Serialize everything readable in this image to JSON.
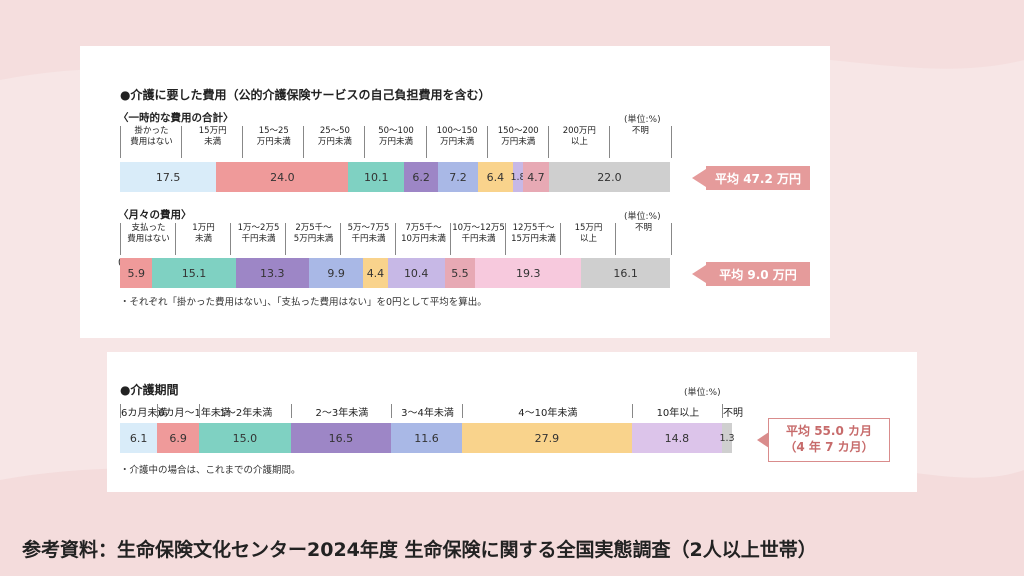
{
  "source": "参考資料：生命保険文化センター2024年度 生命保険に関する全国実態調査（2人以上世帯）",
  "panel1": {
    "title": "●介護に要した費用（公的介護保険サービスの自己負担費用を含む）",
    "note": "・それぞれ「掛かった費用はない」、「支払った費用はない」を0円として平均を算出。"
  },
  "panel2": {
    "title": "●介護期間",
    "note": "・介護中の場合は、これまでの介護期間。"
  },
  "chart_data": [
    {
      "type": "bar",
      "subtitle": "〈一時的な費用の合計〉",
      "unit": "(単位:%)",
      "categories": [
        "掛かった\n費用はない",
        "15万円\n未満",
        "15～25\n万円未満",
        "25～50\n万円未満",
        "50～100\n万円未満",
        "100～150\n万円未満",
        "150～200\n万円未満",
        "200万円\n以上",
        "不明"
      ],
      "values": [
        17.5,
        24.0,
        10.1,
        6.2,
        7.2,
        6.4,
        1.8,
        4.7,
        22.0
      ],
      "value_labels": [
        "17.5",
        "24.0",
        "10.1",
        "6.2",
        "7.2",
        "6.4",
        "1.8",
        "4.7",
        "22.0"
      ],
      "colors": [
        "#d9ecf9",
        "#ef9a9a",
        "#7fd1c2",
        "#9d86c6",
        "#a9b8e6",
        "#f9d38c",
        "#c7b8e6",
        "#e7a9b4",
        "#cfcfcf"
      ],
      "average": "平均 47.2 万円"
    },
    {
      "type": "bar",
      "subtitle": "〈月々の費用〉",
      "unit": "(単位:%)",
      "categories": [
        "支払った\n費用はない",
        "1万円\n未満",
        "1万～2万5\n千円未満",
        "2万5千～\n5万円未満",
        "5万～7万5\n千円未満",
        "7万5千～\n10万円未満",
        "10万～12万5\n千円未満",
        "12万5千～\n15万円未満",
        "15万円\n以上",
        "不明"
      ],
      "values": [
        0.0,
        5.9,
        15.1,
        13.3,
        9.9,
        4.4,
        10.4,
        5.5,
        19.3,
        16.1
      ],
      "value_labels": [
        "0.0",
        "5.9",
        "15.1",
        "13.3",
        "9.9",
        "4.4",
        "10.4",
        "5.5",
        "19.3",
        "16.1"
      ],
      "colors": [
        "#d9ecf9",
        "#ef9a9a",
        "#7fd1c2",
        "#9d86c6",
        "#a9b8e6",
        "#f9d38c",
        "#c7b8e6",
        "#e7a9b4",
        "#f7c9dd",
        "#cfcfcf"
      ],
      "average": "平均 9.0 万円"
    },
    {
      "type": "bar",
      "subtitle": "",
      "unit": "(単位:%)",
      "categories": [
        "6カ月未満",
        "6カ月～1年未満",
        "1～2年未満",
        "2～3年未満",
        "3～4年未満",
        "4～10年未満",
        "10年以上",
        "不明"
      ],
      "values": [
        6.1,
        6.9,
        15.0,
        16.5,
        11.6,
        27.9,
        14.8,
        1.3
      ],
      "value_labels": [
        "6.1",
        "6.9",
        "15.0",
        "16.5",
        "11.6",
        "27.9",
        "14.8",
        "1.3"
      ],
      "colors": [
        "#d9ecf9",
        "#ef9a9a",
        "#7fd1c2",
        "#9d86c6",
        "#a9b8e6",
        "#f9d38c",
        "#dcc4ea",
        "#cfcfcf"
      ],
      "average": "平均 55.0 カ月",
      "average_sub": "（4 年 7 カ月）"
    }
  ]
}
